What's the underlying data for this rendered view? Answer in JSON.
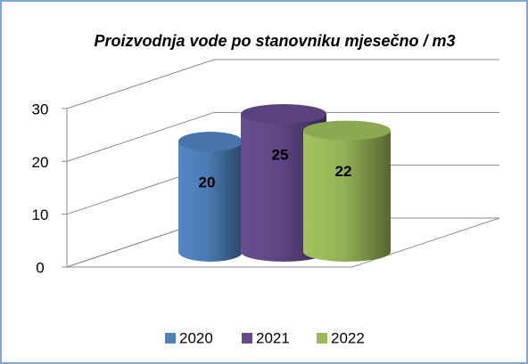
{
  "chart_data": {
    "type": "bar",
    "title": "Proizvodnja vode po stanovniku mjesečno / m3",
    "categories": [
      null
    ],
    "series": [
      {
        "name": "2020",
        "color": "#4f81bd",
        "values": [
          20
        ]
      },
      {
        "name": "2021",
        "color": "#644a8a",
        "values": [
          25
        ]
      },
      {
        "name": "2022",
        "color": "#9bbb59",
        "values": [
          22
        ]
      }
    ],
    "ylim": [
      0,
      30
    ],
    "yticks": [
      0,
      10,
      20,
      30
    ],
    "grid": true,
    "legend": "bottom"
  }
}
